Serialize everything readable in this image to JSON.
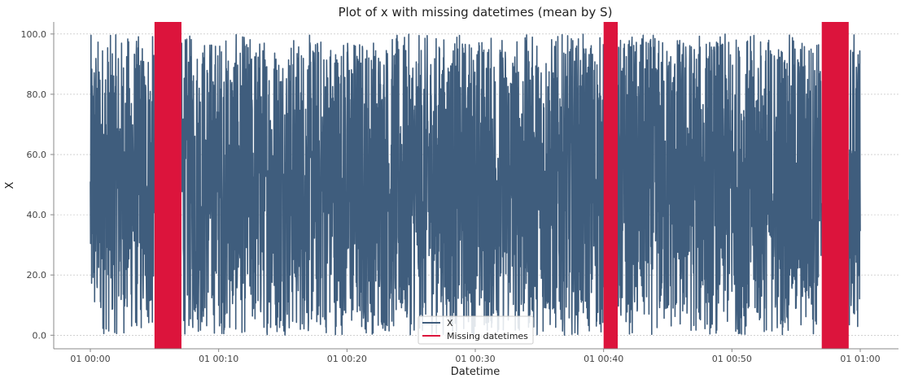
{
  "chart_data": {
    "type": "line",
    "title": "Plot of x with missing datetimes (mean by S)",
    "xlabel": "Datetime",
    "ylabel": "X",
    "x_range_minutes": [
      0,
      60
    ],
    "ylim": [
      -4.5,
      104
    ],
    "x_ticks": [
      {
        "minute": 0,
        "label": "01 00:00"
      },
      {
        "minute": 10,
        "label": "01 00:10"
      },
      {
        "minute": 20,
        "label": "01 00:20"
      },
      {
        "minute": 30,
        "label": "01 00:30"
      },
      {
        "minute": 40,
        "label": "01 00:40"
      },
      {
        "minute": 50,
        "label": "01 00:50"
      },
      {
        "minute": 60,
        "label": "01 01:00"
      }
    ],
    "y_ticks": [
      {
        "value": 0,
        "label": "0.0"
      },
      {
        "value": 20,
        "label": "20.0"
      },
      {
        "value": 40,
        "label": "40.0"
      },
      {
        "value": 60,
        "label": "60.0"
      },
      {
        "value": 80,
        "label": "80.0"
      },
      {
        "value": 100,
        "label": "100.0"
      }
    ],
    "grid": {
      "horizontal": true,
      "vertical": false
    },
    "legend_position": "bottom-center",
    "series": [
      {
        "name": "X",
        "color": "#3f5d7d",
        "kind": "line",
        "value_range": [
          0,
          100
        ],
        "frequency": "1s"
      }
    ],
    "missing_datetimes": {
      "name": "Missing datetimes",
      "color": "#dc143c",
      "ranges_minutes": [
        [
          5.0,
          7.1
        ],
        [
          40.0,
          41.1
        ],
        [
          57.0,
          59.1
        ]
      ]
    }
  }
}
